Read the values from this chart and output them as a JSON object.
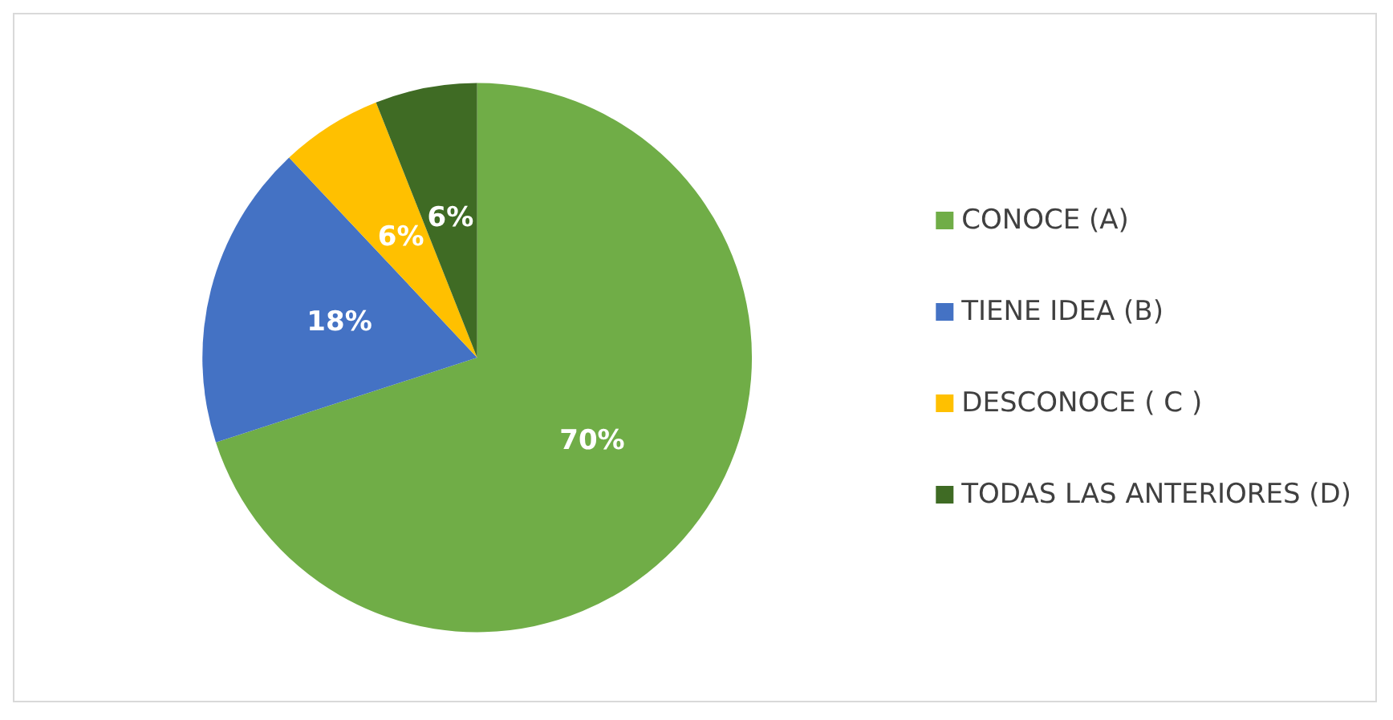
{
  "chart_data": {
    "type": "pie",
    "categories": [
      "CONOCE (A)",
      "TIENE IDEA (B)",
      "DESCONOCE ( C )",
      "TODAS LAS ANTERIORES (D)"
    ],
    "values": [
      70,
      18,
      6,
      6
    ],
    "colors": [
      "#70ad47",
      "#4472c4",
      "#ffc000",
      "#3f6b24"
    ],
    "value_labels": [
      "70%",
      "18%",
      "6%",
      "6%"
    ],
    "legend": "right"
  }
}
